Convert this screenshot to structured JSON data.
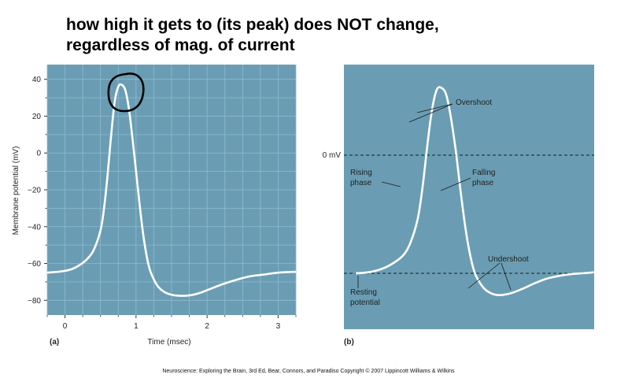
{
  "slide": {
    "title_line1": "how high it gets to (its peak) does NOT change,",
    "title_line2": "regardless of mag. of current",
    "credit": "Neuroscience: Exploring the Brain, 3rd Ed, Bear, Connors, and Paradiso Copyright © 2007 Lippincott Williams & Wilkins"
  },
  "colors": {
    "panel_bg": "#6a9db3",
    "grid": "#8fbcd0",
    "trace": "#ffffff",
    "circle": "#000000"
  },
  "chart_data": [
    {
      "type": "line",
      "panel_label": "(a)",
      "xlabel": "Time (msec)",
      "ylabel": "Membrane potential (mV)",
      "xlim": [
        -0.25,
        3.25
      ],
      "ylim": [
        -88,
        48
      ],
      "xticks": [
        0,
        1,
        2,
        3
      ],
      "yticks": [
        40,
        20,
        0,
        -20,
        -40,
        -60,
        -80
      ],
      "grid": true,
      "series": [
        {
          "x": [
            -0.25,
            -0.1,
            0,
            0.1,
            0.2,
            0.3,
            0.4,
            0.5,
            0.55,
            0.6,
            0.65,
            0.7,
            0.75,
            0.8,
            0.85,
            0.9,
            0.95,
            1.0,
            1.05,
            1.1,
            1.15,
            1.2,
            1.3,
            1.4,
            1.5,
            1.6,
            1.7,
            1.8,
            1.9,
            2.0,
            2.2,
            2.4,
            2.6,
            2.8,
            3.0,
            3.25
          ],
          "y": [
            -65,
            -64.5,
            -64,
            -63,
            -61,
            -58,
            -53,
            -42,
            -30,
            -12,
            10,
            28,
            36,
            37,
            34,
            24,
            8,
            -10,
            -28,
            -44,
            -56,
            -64,
            -72,
            -75.5,
            -77,
            -77.5,
            -77.5,
            -77,
            -76,
            -74.5,
            -71.5,
            -69,
            -67,
            -66,
            -65,
            -64.5
          ]
        }
      ],
      "annotation": "peak circled"
    },
    {
      "type": "line",
      "panel_label": "(b)",
      "xlim": [
        0,
        1
      ],
      "ylim": [
        -88,
        48
      ],
      "reference_lines": [
        {
          "label": "0 mV",
          "y": 0
        },
        {
          "y": -65
        }
      ],
      "annotations": [
        "Overshoot",
        "Rising",
        "phase",
        "Falling",
        "phase",
        "Undershoot",
        "Resting",
        "potential"
      ],
      "series": [
        {
          "x": [
            0,
            0.05,
            0.1,
            0.15,
            0.2,
            0.23,
            0.26,
            0.28,
            0.3,
            0.32,
            0.34,
            0.36,
            0.38,
            0.4,
            0.42,
            0.44,
            0.46,
            0.48,
            0.5,
            0.53,
            0.56,
            0.6,
            0.65,
            0.7,
            0.75,
            0.8,
            0.85,
            0.9,
            0.95,
            1.0
          ],
          "y": [
            -65,
            -64.5,
            -63,
            -60,
            -55,
            -48,
            -35,
            -18,
            5,
            25,
            36,
            37,
            33,
            20,
            2,
            -20,
            -40,
            -55,
            -65,
            -72,
            -75.5,
            -77,
            -76,
            -73.5,
            -70.5,
            -68,
            -66.5,
            -65.5,
            -65,
            -64.5
          ]
        }
      ]
    }
  ]
}
